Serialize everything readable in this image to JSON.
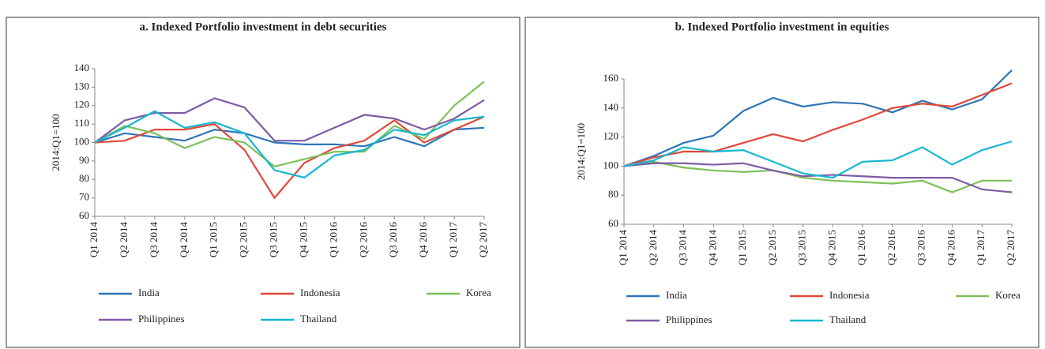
{
  "chart_data": [
    {
      "type": "line",
      "title": "a. Indexed Portfolio investment in debt securities",
      "ylabel": "2014:Q1=100",
      "categories": [
        "Q1 2014",
        "Q2 2014",
        "Q3 2014",
        "Q4 2014",
        "Q1 2015",
        "Q2 2015",
        "Q3 2015",
        "Q4 2015",
        "Q1 2016",
        "Q2 2016",
        "Q3 2016",
        "Q4 2016",
        "Q1 2017",
        "Q2 2017"
      ],
      "ylim": [
        60,
        140
      ],
      "yticks": [
        60,
        70,
        80,
        90,
        100,
        110,
        120,
        130,
        140
      ],
      "grid": false,
      "legend": "bottom",
      "series": [
        {
          "name": "India",
          "color": "#2e75b6",
          "values": [
            100,
            105,
            103,
            101,
            107,
            105,
            100,
            99,
            99,
            98,
            103,
            98,
            107,
            108
          ]
        },
        {
          "name": "Indonesia",
          "color": "#e0483a",
          "values": [
            100,
            101,
            107,
            107,
            110,
            96,
            70,
            89,
            97,
            101,
            112,
            100,
            107,
            114
          ]
        },
        {
          "name": "Korea",
          "color": "#7dc05a",
          "values": [
            100,
            109,
            105,
            97,
            103,
            100,
            87,
            91,
            95,
            95,
            109,
            102,
            120,
            133
          ]
        },
        {
          "name": "Philippines",
          "color": "#7f5ba6",
          "values": [
            100,
            112,
            116,
            116,
            124,
            119,
            101,
            101,
            108,
            115,
            113,
            107,
            113,
            123
          ]
        },
        {
          "name": "Thailand",
          "color": "#16b8d0",
          "values": [
            100,
            108,
            117,
            108,
            111,
            105,
            85,
            81,
            93,
            96,
            107,
            104,
            112,
            114
          ]
        }
      ]
    },
    {
      "type": "line",
      "title": "b. Indexed Portfolio investment in equities",
      "ylabel": "2014:Q1=100",
      "categories": [
        "Q1 2014",
        "Q2 2014",
        "Q3 2014",
        "Q4 2014",
        "Q1 2015",
        "Q2 2015",
        "Q3 2015",
        "Q4 2015",
        "Q1 2016",
        "Q2 2016",
        "Q3 2016",
        "Q4 2016",
        "Q1 2017",
        "Q2 2017"
      ],
      "ylim": [
        60,
        160
      ],
      "yticks": [
        60,
        80,
        100,
        120,
        140,
        160
      ],
      "grid": false,
      "legend": "bottom",
      "series": [
        {
          "name": "India",
          "color": "#2e75b6",
          "values": [
            100,
            107,
            116,
            121,
            138,
            147,
            141,
            144,
            143,
            137,
            145,
            139,
            146,
            166
          ]
        },
        {
          "name": "Indonesia",
          "color": "#e0483a",
          "values": [
            100,
            106,
            110,
            110,
            116,
            122,
            117,
            125,
            132,
            140,
            143,
            141,
            149,
            157
          ]
        },
        {
          "name": "Korea",
          "color": "#7dc05a",
          "values": [
            100,
            103,
            99,
            97,
            96,
            97,
            92,
            90,
            89,
            88,
            90,
            82,
            90,
            90
          ]
        },
        {
          "name": "Philippines",
          "color": "#7f5ba6",
          "values": [
            100,
            102,
            102,
            101,
            102,
            97,
            93,
            94,
            93,
            92,
            92,
            92,
            84,
            82
          ]
        },
        {
          "name": "Thailand",
          "color": "#16b8d0",
          "values": [
            100,
            104,
            113,
            110,
            111,
            103,
            95,
            92,
            103,
            104,
            113,
            101,
            111,
            117
          ]
        }
      ]
    }
  ]
}
